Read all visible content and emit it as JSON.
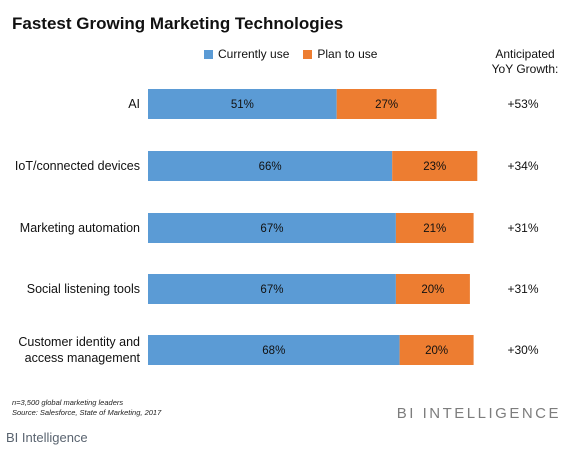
{
  "title": "Fastest Growing Marketing Technologies",
  "growth_header": [
    "Anticipated",
    "YoY Growth:"
  ],
  "colors": {
    "currently_use": "#5b9bd5",
    "plan_to_use": "#ed7d31"
  },
  "chart_data": {
    "type": "bar",
    "orientation": "horizontal",
    "stacked": true,
    "title": "Fastest Growing Marketing Technologies",
    "categories": [
      "AI",
      "IoT/connected devices",
      "Marketing automation",
      "Social listening tools",
      "Customer identity and access management"
    ],
    "category_label_lines": [
      [
        "AI"
      ],
      [
        "IoT/connected devices"
      ],
      [
        "Marketing automation"
      ],
      [
        "Social listening tools"
      ],
      [
        "Customer identity and",
        "access management"
      ]
    ],
    "series": [
      {
        "name": "Currently use",
        "values": [
          51,
          66,
          67,
          67,
          68
        ],
        "labels": [
          "51%",
          "66%",
          "67%",
          "67%",
          "68%"
        ]
      },
      {
        "name": "Plan to use",
        "values": [
          27,
          23,
          21,
          20,
          20
        ],
        "labels": [
          "27%",
          "23%",
          "21%",
          "20%",
          "20%"
        ]
      }
    ],
    "growth_labels": [
      "+53%",
      "+34%",
      "+31%",
      "+31%",
      "+30%"
    ],
    "xlim": [
      0,
      100
    ],
    "grid": false,
    "legend_position": "top"
  },
  "footnote": [
    "n=3,500 global marketing leaders",
    "Source: Salesforce, State of Marketing, 2017"
  ],
  "brand": "BI INTELLIGENCE",
  "caption": "BI Intelligence"
}
